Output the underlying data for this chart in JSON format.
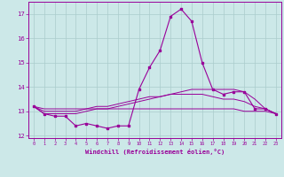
{
  "hours": [
    0,
    1,
    2,
    3,
    4,
    5,
    6,
    7,
    8,
    9,
    10,
    11,
    12,
    13,
    14,
    15,
    16,
    17,
    18,
    19,
    20,
    21,
    22,
    23
  ],
  "main_line": [
    13.2,
    12.9,
    12.8,
    12.8,
    12.4,
    12.5,
    12.4,
    12.3,
    12.4,
    12.4,
    13.9,
    14.8,
    15.5,
    16.9,
    17.2,
    16.7,
    15.0,
    13.9,
    13.7,
    13.8,
    13.8,
    13.1,
    13.1,
    12.9
  ],
  "line2": [
    13.2,
    12.9,
    12.9,
    12.9,
    12.9,
    13.0,
    13.1,
    13.1,
    13.2,
    13.3,
    13.4,
    13.5,
    13.6,
    13.7,
    13.8,
    13.9,
    13.9,
    13.9,
    13.9,
    13.9,
    13.8,
    13.5,
    13.1,
    12.9
  ],
  "line3": [
    13.2,
    13.1,
    13.1,
    13.1,
    13.1,
    13.1,
    13.1,
    13.1,
    13.1,
    13.1,
    13.1,
    13.1,
    13.1,
    13.1,
    13.1,
    13.1,
    13.1,
    13.1,
    13.1,
    13.1,
    13.0,
    13.0,
    13.0,
    12.9
  ],
  "line4": [
    13.2,
    13.0,
    13.0,
    13.0,
    13.0,
    13.1,
    13.2,
    13.2,
    13.3,
    13.4,
    13.5,
    13.6,
    13.6,
    13.7,
    13.7,
    13.7,
    13.7,
    13.6,
    13.5,
    13.5,
    13.4,
    13.2,
    13.1,
    12.9
  ],
  "color": "#990099",
  "bg_color": "#cce8e8",
  "grid_color": "#aacccc",
  "xlabel": "Windchill (Refroidissement éolien,°C)",
  "ylim": [
    11.9,
    17.5
  ],
  "xlim": [
    -0.5,
    23.5
  ],
  "yticks": [
    12,
    13,
    14,
    15,
    16,
    17
  ],
  "xticks": [
    0,
    1,
    2,
    3,
    4,
    5,
    6,
    7,
    8,
    9,
    10,
    11,
    12,
    13,
    14,
    15,
    16,
    17,
    18,
    19,
    20,
    21,
    22,
    23
  ],
  "xlabel_fontsize": 5.0,
  "xtick_fontsize": 3.8,
  "ytick_fontsize": 5.2,
  "linewidth_main": 0.8,
  "linewidth_other": 0.7,
  "markersize": 2.0
}
